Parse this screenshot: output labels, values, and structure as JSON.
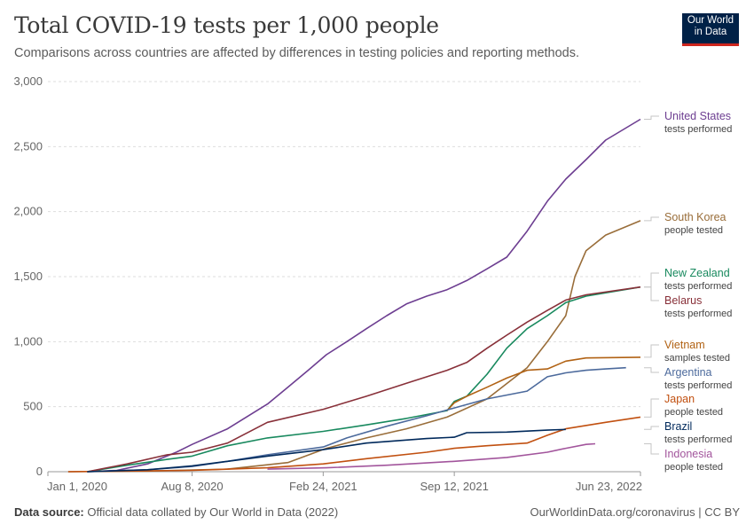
{
  "header": {
    "title": "Total COVID-19 tests per 1,000 people",
    "subtitle": "Comparisons across countries are affected by differences in testing policies and reporting methods."
  },
  "logo": {
    "line1": "Our World",
    "line2": "in Data",
    "bg_color": "#002147",
    "accent_color": "#ce261e"
  },
  "footer": {
    "source_label": "Data source:",
    "source_text": "Official data collated by Our World in Data (2022)",
    "url": "OurWorldinData.org/coronavirus",
    "separator": "|",
    "license": "CC BY"
  },
  "chart_data": {
    "type": "line",
    "title": "Total COVID-19 tests per 1,000 people",
    "x_axis": {
      "ticks": [
        "Jan 1, 2020",
        "Aug 8, 2020",
        "Feb 24, 2021",
        "Sep 12, 2021",
        "Jun 23, 2022"
      ],
      "range": [
        "2020-01-01",
        "2022-06-23"
      ]
    },
    "y_axis": {
      "ticks": [
        0,
        500,
        1000,
        1500,
        2000,
        2500,
        3000
      ],
      "tick_labels": [
        "0",
        "500",
        "1,000",
        "1,500",
        "2,000",
        "2,500",
        "3,000"
      ],
      "range": [
        0,
        3000
      ]
    },
    "grid": "horizontal dashed",
    "legend": "right, labels at line ends",
    "series": [
      {
        "name": "United States",
        "sublabel": "tests performed",
        "color": "#6d3e91",
        "points": [
          [
            "2020-03-01",
            0
          ],
          [
            "2020-04-15",
            10
          ],
          [
            "2020-06-01",
            60
          ],
          [
            "2020-07-15",
            150
          ],
          [
            "2020-08-08",
            210
          ],
          [
            "2020-10-01",
            330
          ],
          [
            "2020-12-01",
            520
          ],
          [
            "2021-01-01",
            650
          ],
          [
            "2021-02-01",
            780
          ],
          [
            "2021-03-01",
            900
          ],
          [
            "2021-04-01",
            1000
          ],
          [
            "2021-05-01",
            1100
          ],
          [
            "2021-06-01",
            1200
          ],
          [
            "2021-07-01",
            1290
          ],
          [
            "2021-08-01",
            1350
          ],
          [
            "2021-09-01",
            1400
          ],
          [
            "2021-10-01",
            1470
          ],
          [
            "2021-11-01",
            1560
          ],
          [
            "2021-12-01",
            1650
          ],
          [
            "2022-01-01",
            1850
          ],
          [
            "2022-02-01",
            2080
          ],
          [
            "2022-03-01",
            2250
          ],
          [
            "2022-04-01",
            2400
          ],
          [
            "2022-05-01",
            2550
          ],
          [
            "2022-06-23",
            2710
          ]
        ]
      },
      {
        "name": "South Korea",
        "sublabel": "people tested",
        "color": "#996d39",
        "points": [
          [
            "2020-02-01",
            0
          ],
          [
            "2020-06-01",
            5
          ],
          [
            "2020-10-01",
            20
          ],
          [
            "2021-01-01",
            70
          ],
          [
            "2021-03-01",
            180
          ],
          [
            "2021-05-01",
            260
          ],
          [
            "2021-07-01",
            330
          ],
          [
            "2021-09-01",
            420
          ],
          [
            "2021-11-01",
            560
          ],
          [
            "2022-01-01",
            800
          ],
          [
            "2022-02-01",
            1000
          ],
          [
            "2022-03-01",
            1200
          ],
          [
            "2022-03-15",
            1500
          ],
          [
            "2022-04-01",
            1700
          ],
          [
            "2022-05-01",
            1820
          ],
          [
            "2022-06-23",
            1930
          ]
        ]
      },
      {
        "name": "New Zealand",
        "sublabel": "tests performed",
        "color": "#18895e",
        "points": [
          [
            "2020-03-01",
            0
          ],
          [
            "2020-05-01",
            50
          ],
          [
            "2020-07-01",
            95
          ],
          [
            "2020-08-08",
            120
          ],
          [
            "2020-10-01",
            200
          ],
          [
            "2020-12-01",
            260
          ],
          [
            "2021-02-24",
            310
          ],
          [
            "2021-05-01",
            360
          ],
          [
            "2021-07-01",
            410
          ],
          [
            "2021-09-01",
            470
          ],
          [
            "2021-09-12",
            540
          ],
          [
            "2021-10-01",
            580
          ],
          [
            "2021-11-01",
            750
          ],
          [
            "2021-12-01",
            950
          ],
          [
            "2022-01-01",
            1100
          ],
          [
            "2022-02-01",
            1200
          ],
          [
            "2022-03-01",
            1300
          ],
          [
            "2022-04-01",
            1350
          ],
          [
            "2022-06-23",
            1420
          ]
        ]
      },
      {
        "name": "Belarus",
        "sublabel": "tests performed",
        "color": "#883039",
        "points": [
          [
            "2020-03-01",
            0
          ],
          [
            "2020-05-01",
            60
          ],
          [
            "2020-07-01",
            130
          ],
          [
            "2020-08-08",
            150
          ],
          [
            "2020-10-01",
            220
          ],
          [
            "2020-12-01",
            380
          ],
          [
            "2021-02-24",
            480
          ],
          [
            "2021-05-01",
            580
          ],
          [
            "2021-07-01",
            680
          ],
          [
            "2021-09-01",
            780
          ],
          [
            "2021-10-01",
            840
          ],
          [
            "2021-11-01",
            950
          ],
          [
            "2021-12-01",
            1050
          ],
          [
            "2022-01-01",
            1150
          ],
          [
            "2022-02-01",
            1240
          ],
          [
            "2022-03-01",
            1320
          ],
          [
            "2022-04-01",
            1360
          ],
          [
            "2022-06-23",
            1420
          ]
        ]
      },
      {
        "name": "Vietnam",
        "sublabel": "samples tested",
        "color": "#b16214",
        "points": [
          [
            "2021-09-01",
            470
          ],
          [
            "2021-09-12",
            530
          ],
          [
            "2021-10-01",
            580
          ],
          [
            "2021-11-01",
            650
          ],
          [
            "2021-12-01",
            720
          ],
          [
            "2022-01-01",
            780
          ],
          [
            "2022-02-01",
            790
          ],
          [
            "2022-03-01",
            850
          ],
          [
            "2022-04-01",
            875
          ],
          [
            "2022-06-23",
            880
          ]
        ]
      },
      {
        "name": "Argentina",
        "sublabel": "tests performed",
        "color": "#4c6a9c",
        "points": [
          [
            "2020-03-01",
            0
          ],
          [
            "2020-06-01",
            15
          ],
          [
            "2020-08-08",
            40
          ],
          [
            "2020-10-01",
            80
          ],
          [
            "2020-12-01",
            130
          ],
          [
            "2021-02-24",
            190
          ],
          [
            "2021-04-01",
            260
          ],
          [
            "2021-06-01",
            350
          ],
          [
            "2021-08-01",
            430
          ],
          [
            "2021-09-12",
            490
          ],
          [
            "2021-11-01",
            560
          ],
          [
            "2022-01-01",
            620
          ],
          [
            "2022-02-01",
            730
          ],
          [
            "2022-03-01",
            760
          ],
          [
            "2022-04-01",
            780
          ],
          [
            "2022-05-01",
            790
          ],
          [
            "2022-06-01",
            800
          ]
        ]
      },
      {
        "name": "Japan",
        "sublabel": "people tested",
        "color": "#c15010",
        "points": [
          [
            "2020-02-01",
            0
          ],
          [
            "2020-08-08",
            10
          ],
          [
            "2020-12-01",
            30
          ],
          [
            "2021-02-24",
            60
          ],
          [
            "2021-05-01",
            100
          ],
          [
            "2021-08-01",
            150
          ],
          [
            "2021-09-12",
            180
          ],
          [
            "2021-11-01",
            200
          ],
          [
            "2022-01-01",
            220
          ],
          [
            "2022-02-01",
            280
          ],
          [
            "2022-03-01",
            330
          ],
          [
            "2022-05-01",
            380
          ],
          [
            "2022-06-23",
            420
          ]
        ]
      },
      {
        "name": "Brazil",
        "sublabel": "tests performed",
        "color": "#00295b",
        "points": [
          [
            "2020-03-01",
            0
          ],
          [
            "2020-06-01",
            15
          ],
          [
            "2020-08-08",
            45
          ],
          [
            "2020-10-01",
            80
          ],
          [
            "2020-12-01",
            120
          ],
          [
            "2021-02-24",
            170
          ],
          [
            "2021-05-01",
            220
          ],
          [
            "2021-08-01",
            255
          ],
          [
            "2021-09-12",
            265
          ],
          [
            "2021-10-01",
            300
          ],
          [
            "2021-12-01",
            305
          ],
          [
            "2022-02-01",
            320
          ],
          [
            "2022-03-01",
            325
          ]
        ]
      },
      {
        "name": "Indonesia",
        "sublabel": "people tested",
        "color": "#a2559c",
        "points": [
          [
            "2020-12-01",
            20
          ],
          [
            "2021-03-01",
            30
          ],
          [
            "2021-06-01",
            50
          ],
          [
            "2021-09-12",
            80
          ],
          [
            "2021-12-01",
            110
          ],
          [
            "2022-02-01",
            150
          ],
          [
            "2022-03-01",
            180
          ],
          [
            "2022-04-01",
            210
          ],
          [
            "2022-04-15",
            215
          ]
        ]
      }
    ]
  }
}
